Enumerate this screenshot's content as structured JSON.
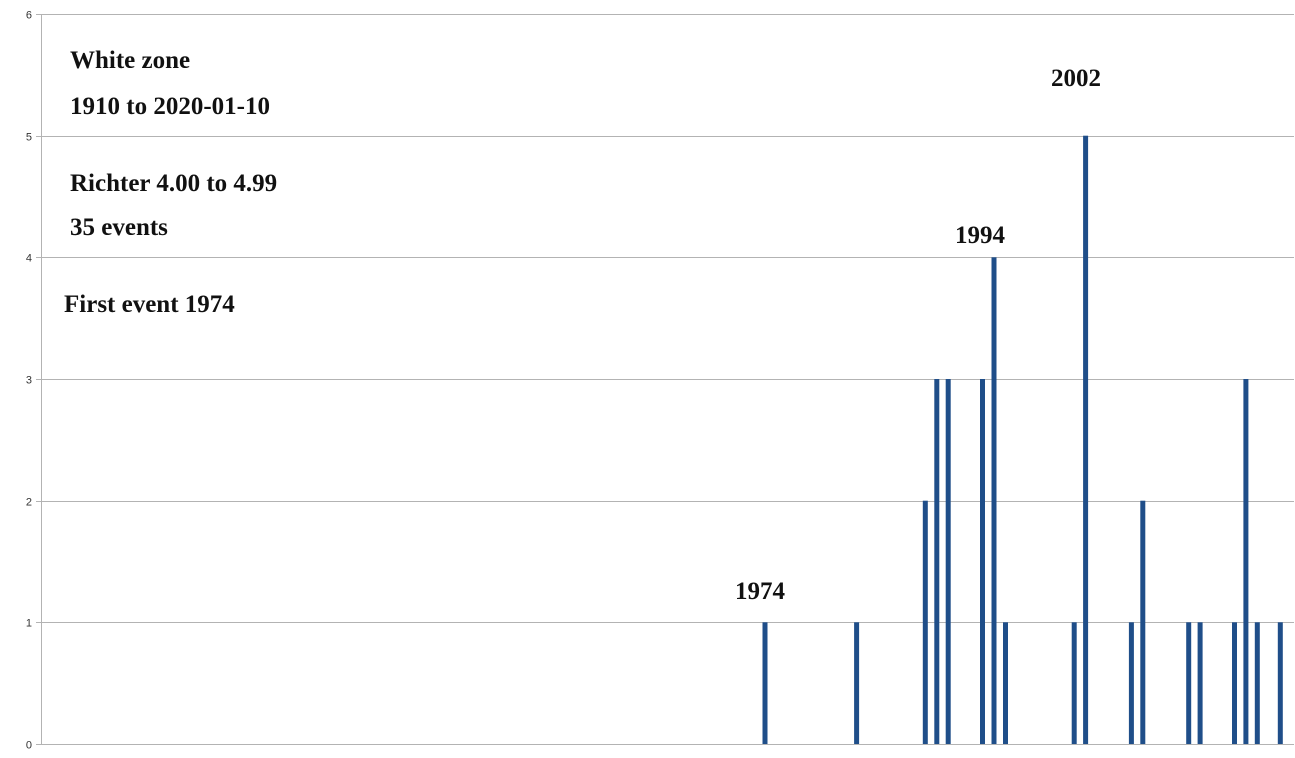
{
  "chart_data": {
    "type": "bar",
    "x_unit": "year",
    "xlim": [
      1910,
      2020
    ],
    "ylim": [
      0,
      6
    ],
    "yticks": [
      "0",
      "1",
      "2",
      "3",
      "4",
      "5",
      "6"
    ],
    "grid": true,
    "legend": "none",
    "bar_color": "#1f4e89",
    "x": [
      1974,
      1982,
      1988,
      1989,
      1990,
      1993,
      1994,
      1995,
      2001,
      2002,
      2006,
      2007,
      2011,
      2012,
      2015,
      2016,
      2017,
      2019
    ],
    "values": [
      1,
      1,
      2,
      3,
      3,
      3,
      4,
      1,
      1,
      5,
      1,
      2,
      1,
      1,
      1,
      3,
      1,
      1
    ]
  },
  "annotations": {
    "zone": "White zone",
    "period": "1910 to 2020-01-10",
    "magnitude": "Richter 4.00 to 4.99",
    "count": "35 events",
    "first": "First event 1974",
    "label_1974": "1974",
    "label_1994": "1994",
    "label_2002": "2002"
  }
}
